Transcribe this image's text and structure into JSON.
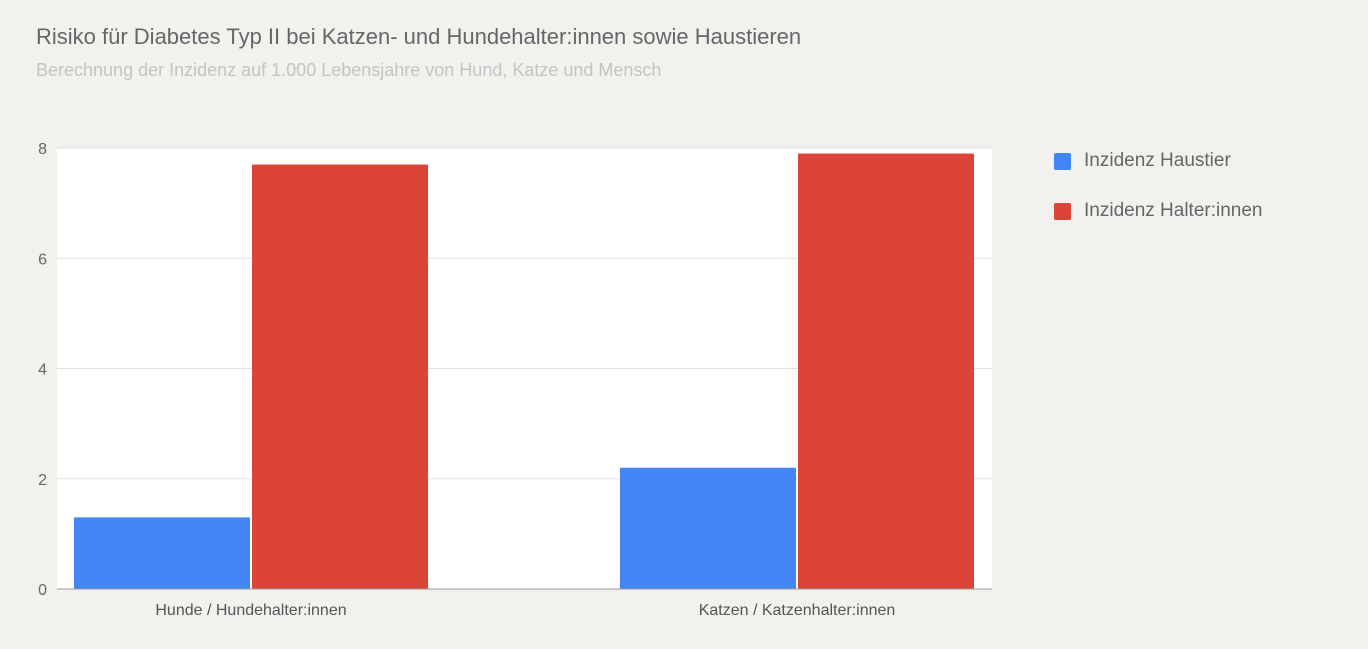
{
  "chart_data": {
    "type": "bar",
    "title": "Risiko für Diabetes Typ II bei Katzen- und Hundehalter:innen sowie Haustieren",
    "subtitle": "Berechnung der Inzidenz auf 1.000 Lebensjahre von Hund, Katze und Mensch",
    "categories": [
      "Hunde / Hundehalter:innen",
      "Katzen / Katzenhalter:innen"
    ],
    "series": [
      {
        "name": "Inzidenz Haustier",
        "color": "#4285f4",
        "values": [
          1.3,
          2.2
        ]
      },
      {
        "name": "Inzidenz Halter:innen",
        "color": "#db4437",
        "values": [
          7.7,
          7.9
        ]
      }
    ],
    "ylim": [
      0,
      8
    ],
    "yticks": [
      "0",
      "2",
      "4",
      "6",
      "8"
    ],
    "grid": true,
    "legend": "right"
  }
}
